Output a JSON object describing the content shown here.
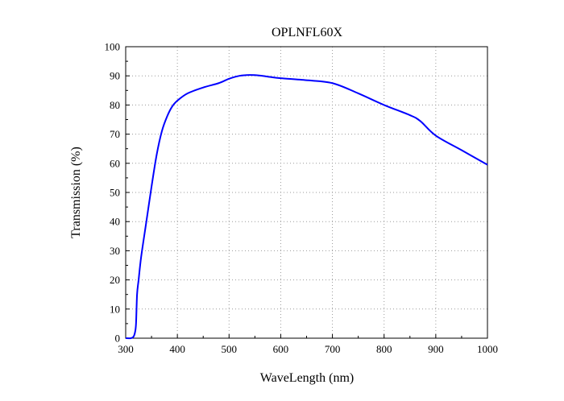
{
  "chart_data": {
    "type": "line",
    "title": "OPLNFL60X",
    "xlabel": "WaveLength (nm)",
    "ylabel": "Transmission (%)",
    "xlim": [
      300,
      1000
    ],
    "ylim": [
      0,
      100
    ],
    "x_ticks": [
      "300",
      "400",
      "500",
      "600",
      "700",
      "800",
      "900",
      "1000"
    ],
    "y_ticks": [
      "0",
      "10",
      "20",
      "30",
      "40",
      "50",
      "60",
      "70",
      "80",
      "90",
      "100"
    ],
    "grid": "dotted",
    "legend": "none",
    "series": [
      {
        "color": "#0000ff",
        "x": [
          300,
          310,
          315,
          318,
          320,
          322,
          325,
          330,
          340,
          350,
          360,
          370,
          380,
          390,
          400,
          420,
          450,
          480,
          500,
          520,
          540,
          560,
          580,
          600,
          650,
          700,
          750,
          800,
          850,
          870,
          900,
          950,
          1000
        ],
        "y": [
          0,
          0,
          0.5,
          2,
          5,
          15,
          20,
          28,
          40,
          52,
          63,
          71,
          76,
          79.5,
          81.5,
          84,
          86,
          87.5,
          89,
          90,
          90.3,
          90.1,
          89.6,
          89.2,
          88.5,
          87.5,
          84,
          80,
          76.5,
          74.5,
          69.5,
          64.5,
          59.5
        ]
      }
    ]
  }
}
